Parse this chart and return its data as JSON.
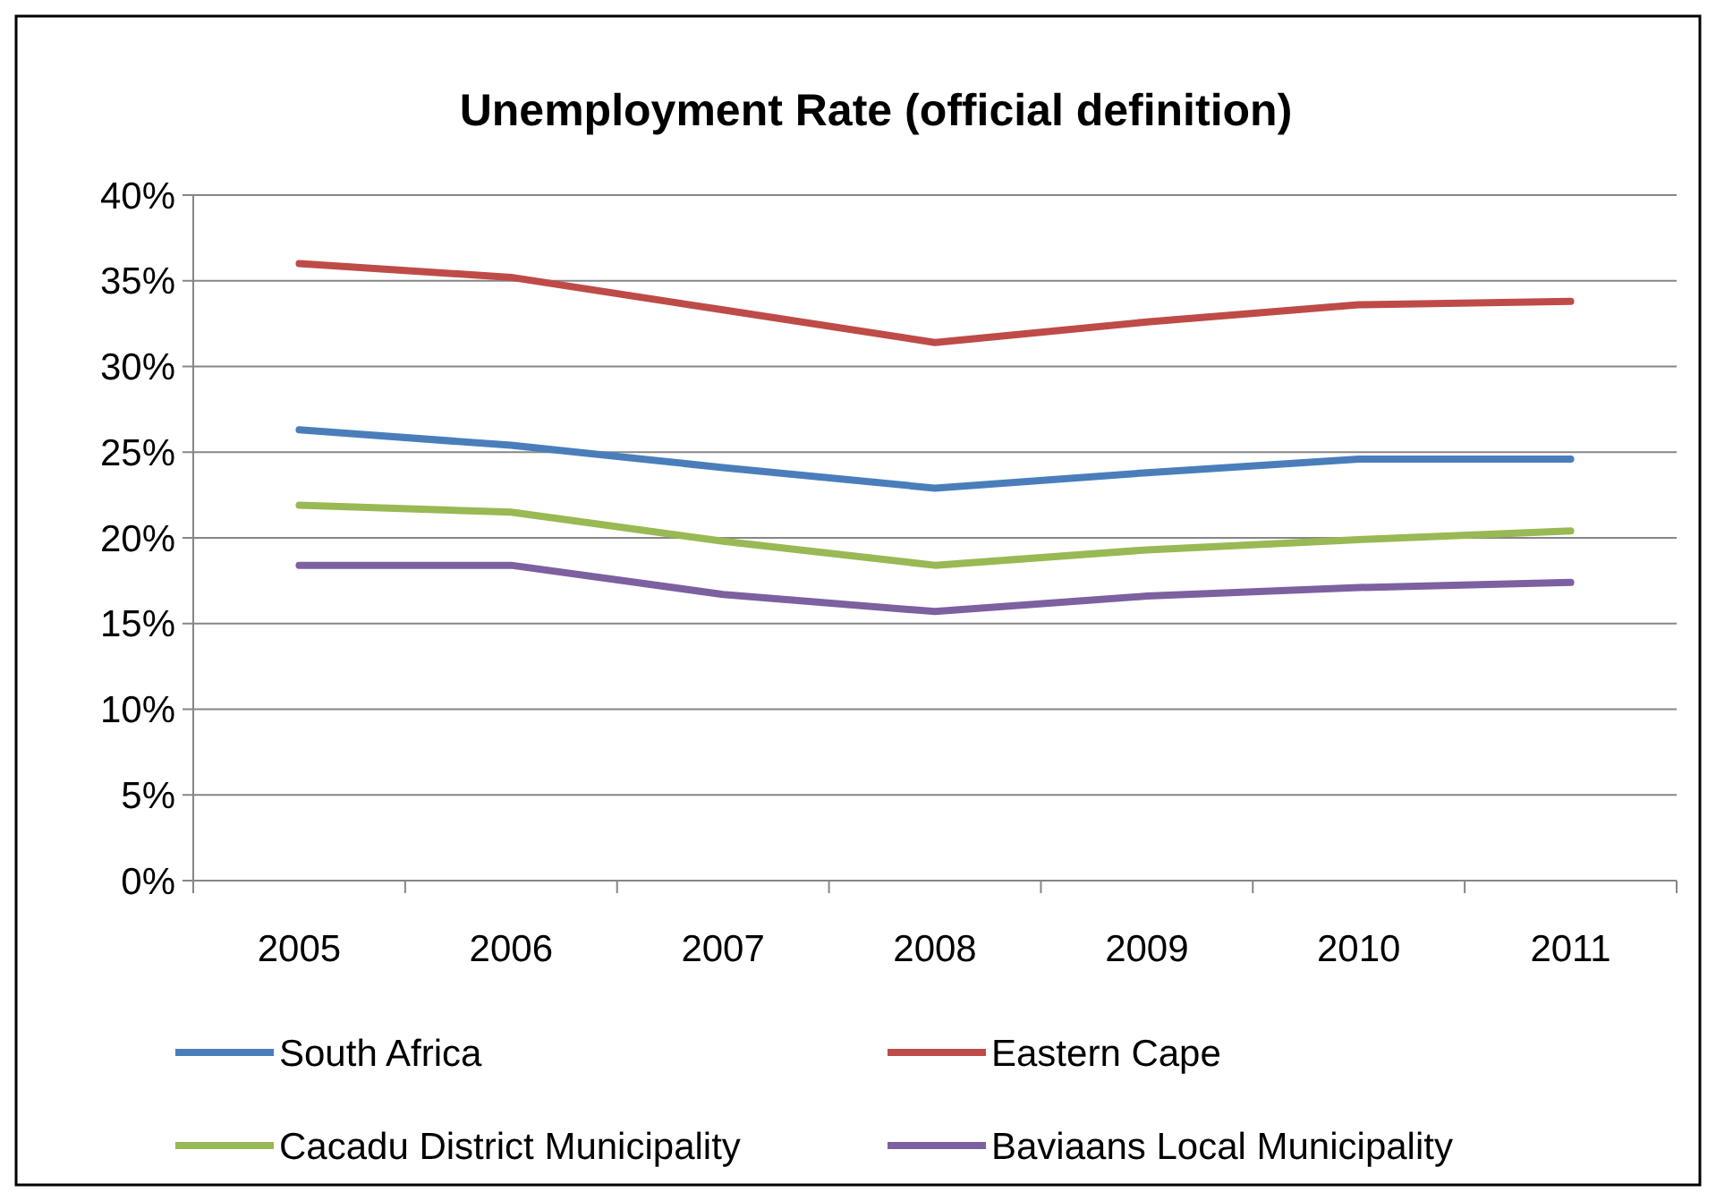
{
  "chart_data": {
    "type": "line",
    "title": "Unemployment Rate (official definition)",
    "categories": [
      "2005",
      "2006",
      "2007",
      "2008",
      "2009",
      "2010",
      "2011"
    ],
    "series": [
      {
        "name": "South Africa",
        "color": "#4a7ebb",
        "values": [
          26.3,
          25.4,
          24.1,
          22.9,
          23.8,
          24.6,
          24.6
        ]
      },
      {
        "name": "Eastern Cape",
        "color": "#be4b48",
        "values": [
          36.0,
          35.2,
          33.3,
          31.4,
          32.6,
          33.6,
          33.8
        ]
      },
      {
        "name": "Cacadu District Municipality",
        "color": "#98b954",
        "values": [
          21.9,
          21.5,
          19.8,
          18.4,
          19.3,
          19.9,
          20.4
        ]
      },
      {
        "name": "Baviaans Local Municipality",
        "color": "#7d60a0",
        "values": [
          18.4,
          18.4,
          16.7,
          15.7,
          16.6,
          17.1,
          17.4
        ]
      }
    ],
    "ylim": [
      0,
      40
    ],
    "yticks": [
      {
        "value": 0,
        "label": "0%"
      },
      {
        "value": 5,
        "label": "5%"
      },
      {
        "value": 10,
        "label": "10%"
      },
      {
        "value": 15,
        "label": "15%"
      },
      {
        "value": 20,
        "label": "20%"
      },
      {
        "value": 25,
        "label": "25%"
      },
      {
        "value": 30,
        "label": "30%"
      },
      {
        "value": 35,
        "label": "35%"
      },
      {
        "value": 40,
        "label": "40%"
      }
    ],
    "grid": "y",
    "legend": "bottom",
    "marker": "none",
    "line_style": "solid"
  }
}
